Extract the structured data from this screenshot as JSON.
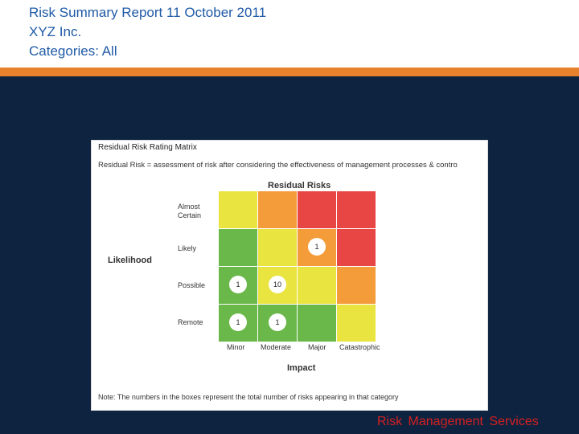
{
  "header": {
    "title": "Risk Summary Report 11 October 2011",
    "company": "XYZ Inc.",
    "categories": "Categories: All"
  },
  "matrix": {
    "panel_title": "Residual Risk Rating Matrix",
    "description": "Residual Risk = assessment of risk after considering the effectiveness of management processes & contro",
    "heading": "Residual Risks",
    "likelihood_label": "Likelihood",
    "impact_label": "Impact",
    "note": "Note: The numbers in the boxes represent the total number of risks appearing in that category",
    "row_labels": [
      "Almost Certain",
      "Likely",
      "Possible",
      "Remote"
    ],
    "col_labels": [
      "Minor",
      "Moderate",
      "Major",
      "Catastrophic"
    ],
    "colors": {
      "green": "#6ab74a",
      "yellow": "#e9e440",
      "orange": "#f59c3a",
      "red": "#e84545"
    },
    "cells": [
      [
        {
          "color": "yellow",
          "count": ""
        },
        {
          "color": "orange",
          "count": ""
        },
        {
          "color": "red",
          "count": ""
        },
        {
          "color": "red",
          "count": ""
        }
      ],
      [
        {
          "color": "green",
          "count": ""
        },
        {
          "color": "yellow",
          "count": ""
        },
        {
          "color": "orange",
          "count": "1"
        },
        {
          "color": "red",
          "count": ""
        }
      ],
      [
        {
          "color": "green",
          "count": "1"
        },
        {
          "color": "yellow",
          "count": "10"
        },
        {
          "color": "yellow",
          "count": ""
        },
        {
          "color": "orange",
          "count": ""
        }
      ],
      [
        {
          "color": "green",
          "count": "1"
        },
        {
          "color": "green",
          "count": "1"
        },
        {
          "color": "green",
          "count": ""
        },
        {
          "color": "yellow",
          "count": ""
        }
      ]
    ]
  },
  "footer": {
    "text": "Risk Management Services"
  }
}
